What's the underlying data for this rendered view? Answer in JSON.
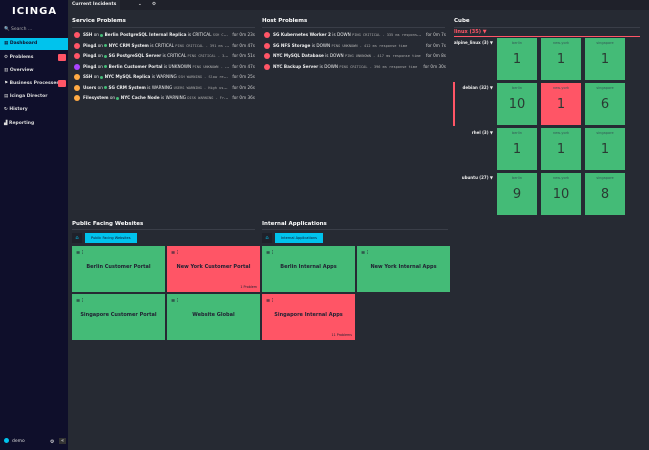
{
  "sidebar": {
    "logo": "icinga",
    "search_placeholder": "Search ...",
    "items": [
      {
        "label": "Dashboard"
      },
      {
        "label": "Problems"
      },
      {
        "label": "Overview"
      },
      {
        "label": "Business Processes"
      },
      {
        "label": "Icinga Director"
      },
      {
        "label": "History"
      },
      {
        "label": "Reporting"
      }
    ],
    "user": "demo"
  },
  "topbar": {
    "tab": "Current Incidents"
  },
  "service_problems": {
    "title": "Service Problems",
    "rows": [
      {
        "svc": "SSH",
        "host": "Berlin PostgreSQL Internal Replica",
        "state": "CRITICAL",
        "out": "SSH CRITICA...",
        "age": "for 0m 23s",
        "color": "#ff5566"
      },
      {
        "svc": "Ping4",
        "host": "NYC CRM System",
        "state": "CRITICAL",
        "out": "PING CRITICAL - 391 ms respo...",
        "age": "for 0m 47s",
        "color": "#ff5566"
      },
      {
        "svc": "Ping4",
        "host": "SG PostgreSQL Server",
        "state": "CRITICAL",
        "out": "PING CRITICAL - 371 ms...",
        "age": "for 0m 51s",
        "color": "#ff5566"
      },
      {
        "svc": "Ping4",
        "host": "Berlin Customer Portal",
        "state": "UNKNOWN",
        "out": "PING UNKNOWN - 331 ...",
        "age": "for 0m 47s",
        "color": "#aa44ff"
      },
      {
        "svc": "SSH",
        "host": "NYC MySQL Replica",
        "state": "WARNING",
        "out": "SSH WARNING - Slow respon...",
        "age": "for 0m 25s",
        "color": "#ffaa44"
      },
      {
        "svc": "Users",
        "host": "SG CRM System",
        "state": "WARNING",
        "out": "USERS WARNING - High user c...",
        "age": "for 0m 26s",
        "color": "#ffaa44"
      },
      {
        "svc": "Filesystem",
        "host": "NYC Cache Node",
        "state": "WARNING",
        "out": "DISK WARNING - Free sp...",
        "age": "for 0m 36s",
        "color": "#ffaa44"
      }
    ]
  },
  "host_problems": {
    "title": "Host Problems",
    "rows": [
      {
        "host": "SG Kubernetes Worker 2",
        "state": "DOWN",
        "out": "PING CRITICAL - 335 ms response ti...",
        "age": "for 0m 7s"
      },
      {
        "host": "SG NFS Storage",
        "state": "DOWN",
        "out": "PING UNKNOWN - 412 ms response time",
        "age": "for 0m 7s"
      },
      {
        "host": "NYC MySQL Database",
        "state": "DOWN",
        "out": "PING UNKNOWN - 417 ms response time",
        "age": "for 0m 8s"
      },
      {
        "host": "NYC Backup Server",
        "state": "DOWN",
        "out": "PING CRITICAL - 396 ms response time",
        "age": "for 0m 30s"
      }
    ]
  },
  "cube": {
    "title": "Cube",
    "filter": "linux (35)",
    "columns": [
      "berlin",
      "new-york",
      "singapore"
    ],
    "rows": [
      {
        "label": "alpine_linux (3)",
        "values": [
          1,
          1,
          1
        ],
        "states": [
          "ok",
          "ok",
          "ok"
        ]
      },
      {
        "label": "debian (32)",
        "values": [
          10,
          1,
          6
        ],
        "states": [
          "ok",
          "critical",
          "ok"
        ]
      },
      {
        "label": "rhel (3)",
        "values": [
          1,
          1,
          1
        ],
        "states": [
          "ok",
          "ok",
          "ok"
        ]
      },
      {
        "label": "ubuntu (27)",
        "values": [
          9,
          10,
          8
        ],
        "states": [
          "ok",
          "ok",
          "ok"
        ]
      }
    ]
  },
  "public_sites": {
    "title": "Public Facing Websites",
    "crumb": "Public Facing Websites",
    "tiles": [
      {
        "name": "Berlin Customer Portal",
        "state": "ok"
      },
      {
        "name": "New York Customer Portal",
        "state": "critical",
        "problems": "1 Problem"
      },
      {
        "name": "Singapore Customer Portal",
        "state": "ok"
      },
      {
        "name": "Website Global",
        "state": "ok"
      }
    ]
  },
  "internal_apps": {
    "title": "Internal Applications",
    "crumb": "Internal Applications",
    "tiles": [
      {
        "name": "Berlin Internal Apps",
        "state": "ok"
      },
      {
        "name": "New York Internal Apps",
        "state": "ok"
      },
      {
        "name": "Singapore Internal Apps",
        "state": "critical",
        "problems": "11 Problems"
      }
    ]
  },
  "colors": {
    "ok": "#44bb77",
    "critical": "#ff5566",
    "accent": "#00c3ed"
  }
}
